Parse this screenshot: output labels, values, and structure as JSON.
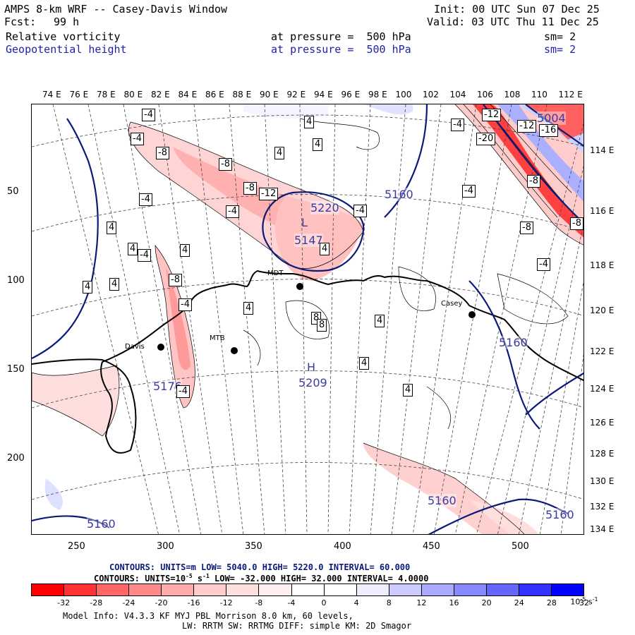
{
  "header": {
    "title": "AMPS 8-km WRF -- Casey-Davis Window",
    "fcst_label": "Fcst:",
    "fcst_value": "99 h",
    "init": "Init: 00 UTC Sun 07 Dec 25",
    "valid": "Valid: 03 UTC Thu 11 Dec 25",
    "field1": "Relative vorticity",
    "field1_level": "at pressure =  500 hPa",
    "field1_sm": "sm= 2",
    "field2": "Geopotential height",
    "field2_level": "at pressure =  500 hPa",
    "field2_sm": "sm= 2"
  },
  "lon_labels_top": [
    "74 E",
    "76 E",
    "78 E",
    "80 E",
    "82 E",
    "84 E",
    "86 E",
    "88 E",
    "90 E",
    "92 E",
    "94 E",
    "96 E",
    "98 E",
    "100",
    "102",
    "104",
    "106",
    "108",
    "110",
    "112 E"
  ],
  "lon_labels_right": [
    "114 E",
    "116 E",
    "118 E",
    "120 E",
    "122 E",
    "124 E",
    "126 E",
    "128 E",
    "130 E",
    "132 E",
    "134 E"
  ],
  "y_axis": [
    "50",
    "100",
    "150",
    "200"
  ],
  "x_axis": [
    "250",
    "300",
    "350",
    "400",
    "450",
    "500"
  ],
  "stations": [
    "Davis",
    "MTB",
    "MDT",
    "Casey"
  ],
  "height_labels": [
    "5160",
    "5147",
    "5220",
    "5209",
    "5176",
    "5160",
    "5160",
    "5160",
    "5160",
    "5004"
  ],
  "pressure_centers": [
    "L",
    "H"
  ],
  "vort_labels": [
    "-4",
    "-4",
    "-8",
    "-8",
    "-8",
    "-12",
    "-4",
    "-4",
    "-4",
    "-4",
    "-8",
    "-4",
    "-4",
    "4",
    "4",
    "4",
    "4",
    "4",
    "4",
    "4",
    "4",
    "4",
    "4",
    "4",
    "4",
    "4",
    "8",
    "8",
    "-12",
    "-16",
    "-12",
    "-20",
    "-8",
    "-8",
    "-8",
    "-4",
    "-4",
    "-4"
  ],
  "contour_info": {
    "line1": "CONTOURS:  UNITS=m  LOW=  5040.0     HIGH=  5220.0      INTERVAL=   60.000",
    "line2_a": "CONTOURS:  UNITS=10",
    "line2_exp1": "-5",
    "line2_b": " s",
    "line2_exp2": "-1",
    "line2_c": "  LOW=  -32.000      HIGH=   32.000      INTERVAL=   4.0000"
  },
  "colorbar": {
    "colors": [
      "#ff0000",
      "#ff3333",
      "#ff6666",
      "#ff8888",
      "#ffaaaa",
      "#ffcccc",
      "#ffdede",
      "#ffeeee",
      "#ffffff",
      "#ffffff",
      "#eeeeff",
      "#ccccff",
      "#aaaaff",
      "#8888ff",
      "#6666ff",
      "#3333ff",
      "#0000ff"
    ],
    "labels": [
      "-32",
      "-28",
      "-24",
      "-20",
      "-16",
      "-12",
      "-8",
      "-4",
      "0",
      "4",
      "8",
      "12",
      "16",
      "20",
      "24",
      "28",
      "32"
    ],
    "units_a": "10",
    "units_exp1": "-5",
    "units_b": " s",
    "units_exp2": "-1"
  },
  "footer": {
    "line1": "Model Info: V4.3.3    KF      MYJ PBL  Morrison             8.0 km,  60 levels,",
    "line2": "LW: RRTM SW: RRTMG   DIFF: simple KM: 2D Smagor"
  }
}
